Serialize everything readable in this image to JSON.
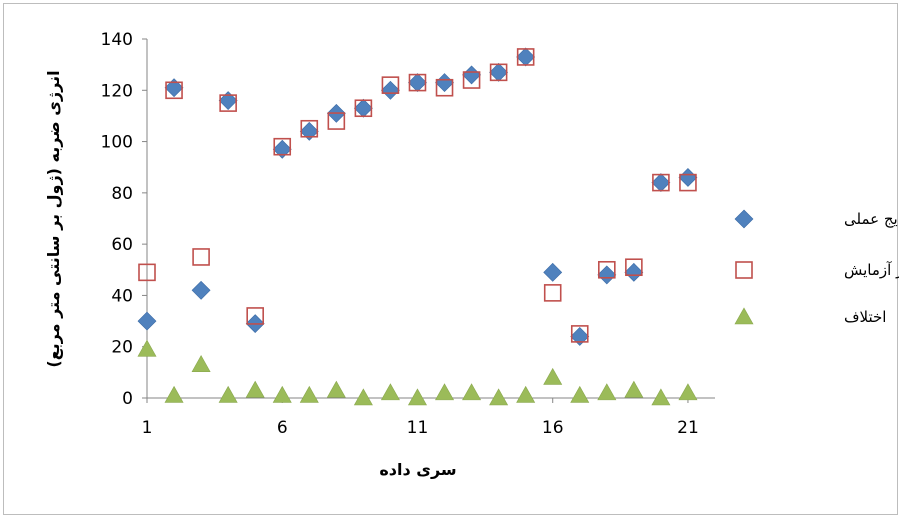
{
  "chart_data": {
    "type": "scatter",
    "title": "",
    "xlabel": "سری داده",
    "ylabel": "انرژی ضربه (ژول بر سانتی متر مربع)",
    "xlim": [
      1,
      22
    ],
    "ylim": [
      0,
      140
    ],
    "x_ticks": [
      1,
      6,
      11,
      16,
      21
    ],
    "y_ticks": [
      0,
      20,
      40,
      60,
      80,
      100,
      120,
      140
    ],
    "grid": false,
    "legend_position": "right",
    "series": [
      {
        "name": "نتایج عملی",
        "marker": "diamond",
        "color": "#4f81bd",
        "x": [
          1,
          2,
          3,
          4,
          5,
          6,
          7,
          8,
          9,
          10,
          11,
          12,
          13,
          14,
          15,
          16,
          17,
          18,
          19,
          20,
          21
        ],
        "y": [
          30,
          121,
          42,
          116,
          29,
          97,
          104,
          111,
          113,
          120,
          123,
          123,
          126,
          127,
          133,
          49,
          24,
          48,
          49,
          84,
          86
        ]
      },
      {
        "name": "نتایج فاز آزمایش",
        "marker": "square-open",
        "color": "#c0504d",
        "x": [
          1,
          2,
          3,
          4,
          5,
          6,
          7,
          8,
          9,
          10,
          11,
          12,
          13,
          14,
          15,
          16,
          17,
          18,
          19,
          20,
          21
        ],
        "y": [
          49,
          120,
          55,
          115,
          32,
          98,
          105,
          108,
          113,
          122,
          123,
          121,
          124,
          127,
          133,
          41,
          25,
          50,
          51,
          84,
          84
        ]
      },
      {
        "name": "اختلاف",
        "marker": "triangle",
        "color": "#9bbb59",
        "x": [
          1,
          2,
          3,
          4,
          5,
          6,
          7,
          8,
          9,
          10,
          11,
          12,
          13,
          14,
          15,
          16,
          17,
          18,
          19,
          20,
          21
        ],
        "y": [
          19,
          1,
          13,
          1,
          3,
          1,
          1,
          3,
          0,
          2,
          0,
          2,
          2,
          0,
          1,
          8,
          1,
          2,
          3,
          0,
          2
        ]
      }
    ]
  }
}
